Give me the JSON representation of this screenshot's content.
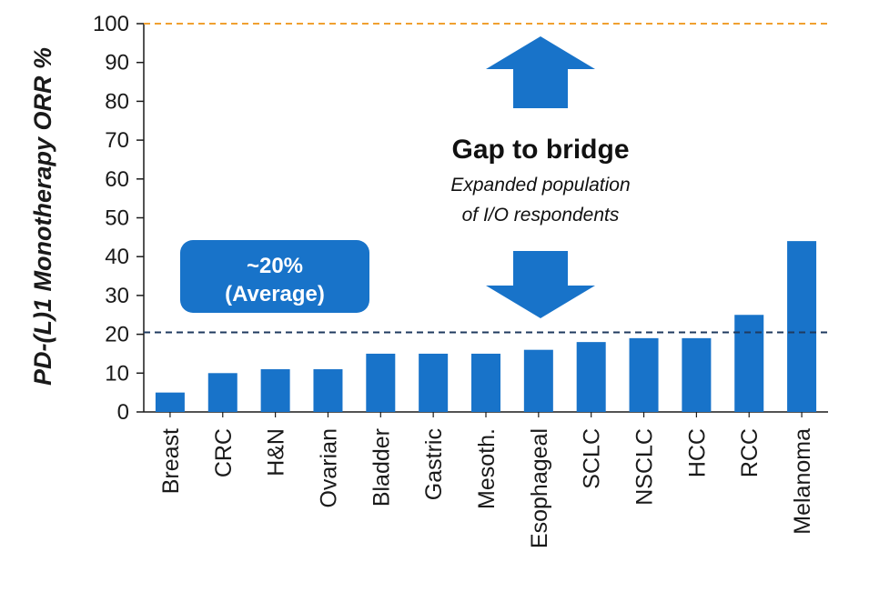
{
  "chart_data": {
    "type": "bar",
    "categories": [
      "Breast",
      "CRC",
      "H&N",
      "Ovarian",
      "Bladder",
      "Gastric",
      "Mesoth.",
      "Esophageal",
      "SCLC",
      "NSCLC",
      "HCC",
      "RCC",
      "Melanoma"
    ],
    "values": [
      5,
      10,
      11,
      11,
      15,
      15,
      15,
      16,
      18,
      19,
      19,
      25,
      44
    ],
    "ylabel": "PD-(L)1 Monotherapy ORR %",
    "xlabel": "",
    "ylim": [
      0,
      100
    ],
    "yticks": [
      0,
      10,
      20,
      30,
      40,
      50,
      60,
      70,
      80,
      90,
      100
    ],
    "average_line": 20.5,
    "target_line": 100,
    "annotations": {
      "gap_title": "Gap to bridge",
      "gap_subtitle_line1": "Expanded population",
      "gap_subtitle_line2": "of I/O respondents",
      "average_label_line1": "~20%",
      "average_label_line2": "(Average)"
    },
    "colors": {
      "bar": "#1873c9",
      "target_line": "#f0a030",
      "average_line": "#1f3a5f",
      "arrow": "#1873c9",
      "average_box": "#1873c9"
    }
  }
}
